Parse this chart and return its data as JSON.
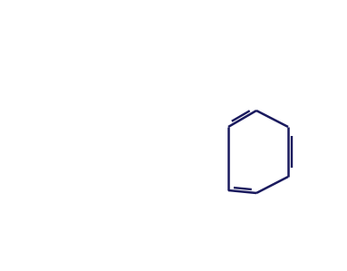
{
  "line_color": "#1a1a5e",
  "line_width": 1.8,
  "background": "#ffffff",
  "font_size_labels": 9,
  "figsize": [
    3.83,
    2.99
  ],
  "dpi": 100
}
